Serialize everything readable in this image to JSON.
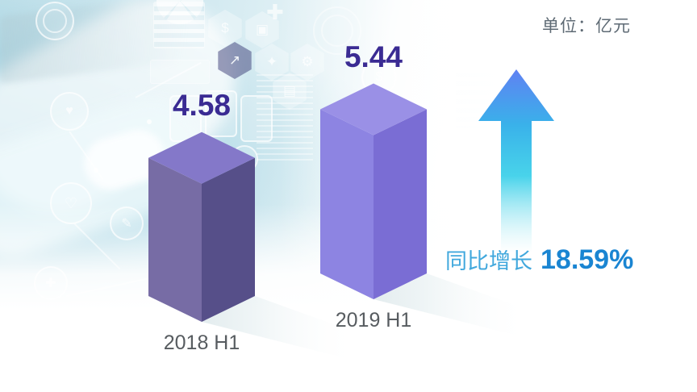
{
  "chart_data": {
    "type": "bar",
    "categories": [
      "2018 H1",
      "2019 H1"
    ],
    "values": [
      4.58,
      5.44
    ],
    "unit_label": "单位：亿元",
    "growth_label": "同比增长",
    "growth_value": "18.59%",
    "bar_colors": [
      {
        "top": "#8478C9",
        "left": "#776CA5",
        "right": "#564F89"
      },
      {
        "top": "#9A90E6",
        "left": "#8D84E2",
        "right": "#7A6DD4"
      }
    ],
    "arrow_gradient": [
      "#5B7DF2",
      "#2FADE9",
      "#28CBE7",
      "#AEEAF2"
    ],
    "ylim": [
      0,
      6
    ],
    "legend": "none",
    "grid": "off"
  },
  "colors": {
    "value_label": "#3A2B93",
    "category_label": "#575C60",
    "unit_label": "#5E6A74",
    "growth_label": "#41A8DD",
    "growth_value": "#1A85D2"
  },
  "background": {
    "circle_icons": [
      {
        "name": "radar-rings-icon",
        "glyph": ""
      },
      {
        "name": "ecg-heart-icon",
        "glyph": "♥"
      },
      {
        "name": "heart-icon",
        "glyph": "♡"
      },
      {
        "name": "medical-cross-icon",
        "glyph": "✚"
      },
      {
        "name": "pencil-icon",
        "glyph": "✎"
      },
      {
        "name": "camera-icon",
        "glyph": "◉"
      },
      {
        "name": "target-icon",
        "glyph": "⊕"
      },
      {
        "name": "dollar-circle-icon",
        "glyph": "$"
      },
      {
        "name": "grid-icon",
        "glyph": "▦"
      }
    ],
    "hex_icons": [
      {
        "name": "dollar-hexagon-icon",
        "glyph": "$"
      },
      {
        "name": "briefcase-hexagon-icon",
        "glyph": "▣"
      },
      {
        "name": "chart-hexagon-icon",
        "glyph": "↗"
      },
      {
        "name": "handshake-hexagon-icon",
        "glyph": "✦"
      },
      {
        "name": "gear-hexagon-icon",
        "glyph": "⚙"
      },
      {
        "name": "document-hexagon-icon",
        "glyph": "▤"
      }
    ],
    "cross_icon_glyph": "✚"
  }
}
